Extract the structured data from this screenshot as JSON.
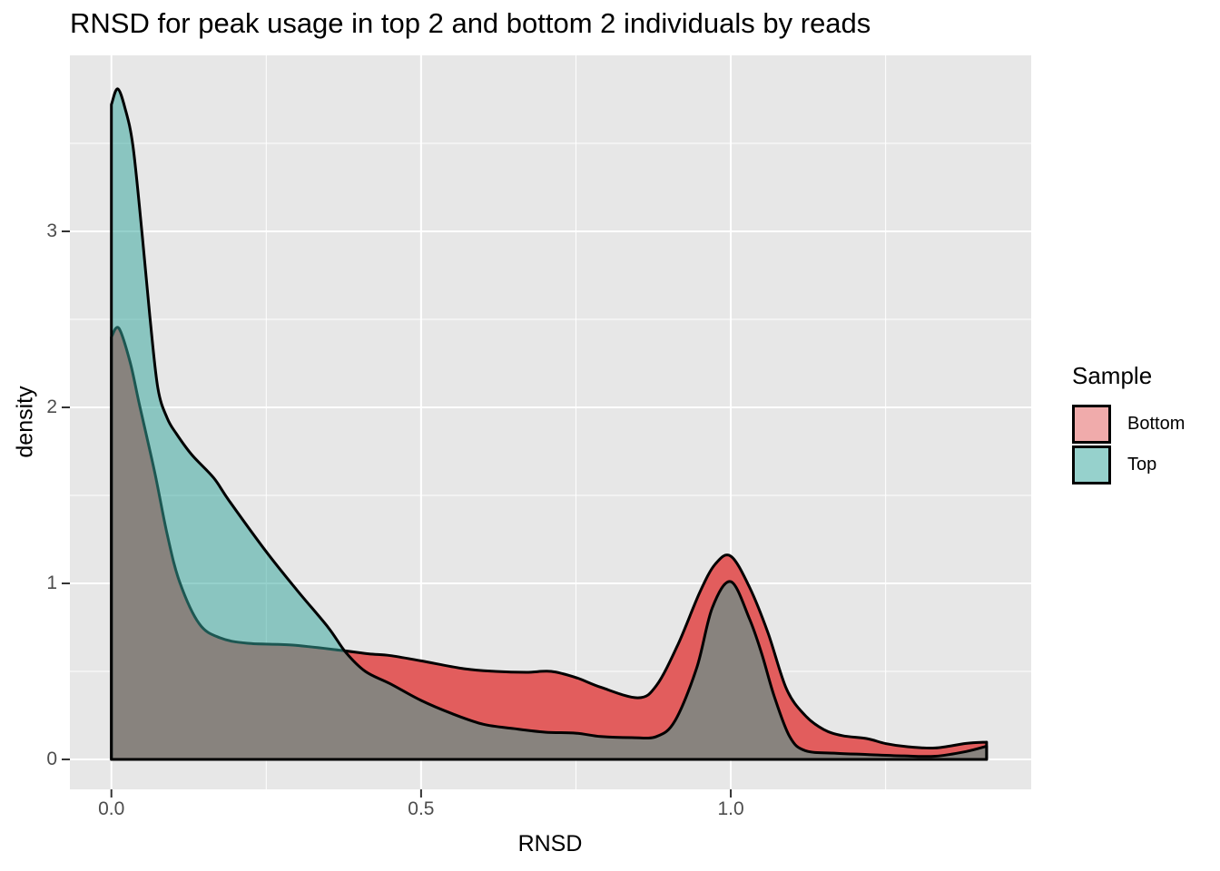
{
  "chart_data": {
    "type": "area",
    "subtype": "overlaid-density",
    "title": "RNSD for peak usage in top 2 and bottom 2 individuals by reads",
    "xlabel": "RNSD",
    "ylabel": "density",
    "xlim": [
      -0.067,
      1.485
    ],
    "ylim": [
      -0.17,
      4.0
    ],
    "x_ticks": {
      "values": [
        0.0,
        0.5,
        1.0
      ],
      "labels": [
        "0.0",
        "0.5",
        "1.0"
      ]
    },
    "y_ticks": {
      "values": [
        0,
        1,
        2,
        3
      ],
      "labels": [
        "0",
        "1",
        "2",
        "3"
      ]
    },
    "x_minor_gridlines": [
      0.25,
      0.75,
      1.25
    ],
    "y_minor_gridlines": [
      0.5,
      1.5,
      2.5,
      3.5
    ],
    "grid": true,
    "legend": {
      "title": "Sample",
      "position": "right",
      "entries": [
        {
          "label": "Bottom",
          "swatch": "#F0ABAB"
        },
        {
          "label": "Top",
          "swatch": "#96D1CC"
        }
      ]
    },
    "series": [
      {
        "name": "Bottom",
        "fill": "#E25D5D",
        "fill_opacity": 1,
        "fill_rendered": "#F0ABAB",
        "stroke": "#000000",
        "points": [
          [
            0,
            2.4
          ],
          [
            0.012,
            2.45
          ],
          [
            0.03,
            2.26
          ],
          [
            0.045,
            2.02
          ],
          [
            0.07,
            1.63
          ],
          [
            0.09,
            1.28
          ],
          [
            0.11,
            1.01
          ],
          [
            0.142,
            0.77
          ],
          [
            0.176,
            0.69
          ],
          [
            0.22,
            0.66
          ],
          [
            0.29,
            0.65
          ],
          [
            0.37,
            0.62
          ],
          [
            0.415,
            0.6
          ],
          [
            0.45,
            0.59
          ],
          [
            0.5,
            0.56
          ],
          [
            0.57,
            0.515
          ],
          [
            0.62,
            0.5
          ],
          [
            0.67,
            0.495
          ],
          [
            0.71,
            0.5
          ],
          [
            0.75,
            0.465
          ],
          [
            0.79,
            0.41
          ],
          [
            0.85,
            0.35
          ],
          [
            0.88,
            0.42
          ],
          [
            0.915,
            0.655
          ],
          [
            0.95,
            0.95
          ],
          [
            0.975,
            1.11
          ],
          [
            1.0,
            1.155
          ],
          [
            1.03,
            0.98
          ],
          [
            1.06,
            0.72
          ],
          [
            1.09,
            0.4
          ],
          [
            1.12,
            0.25
          ],
          [
            1.15,
            0.17
          ],
          [
            1.18,
            0.135
          ],
          [
            1.22,
            0.118
          ],
          [
            1.25,
            0.09
          ],
          [
            1.285,
            0.072
          ],
          [
            1.33,
            0.065
          ],
          [
            1.38,
            0.091
          ],
          [
            1.413,
            0.098
          ]
        ]
      },
      {
        "name": "Top",
        "fill": "#35A69D",
        "fill_opacity": 0.52,
        "fill_rendered": "#96D1CC",
        "stroke": "#000000",
        "points": [
          [
            0,
            3.72
          ],
          [
            0.01,
            3.81
          ],
          [
            0.022,
            3.7
          ],
          [
            0.035,
            3.48
          ],
          [
            0.05,
            2.97
          ],
          [
            0.062,
            2.52
          ],
          [
            0.075,
            2.11
          ],
          [
            0.09,
            1.94
          ],
          [
            0.105,
            1.85
          ],
          [
            0.13,
            1.73
          ],
          [
            0.165,
            1.6
          ],
          [
            0.19,
            1.47
          ],
          [
            0.25,
            1.18
          ],
          [
            0.3,
            0.96
          ],
          [
            0.35,
            0.75
          ],
          [
            0.378,
            0.61
          ],
          [
            0.41,
            0.5
          ],
          [
            0.45,
            0.43
          ],
          [
            0.5,
            0.335
          ],
          [
            0.55,
            0.26
          ],
          [
            0.6,
            0.2
          ],
          [
            0.65,
            0.175
          ],
          [
            0.7,
            0.155
          ],
          [
            0.75,
            0.149
          ],
          [
            0.79,
            0.13
          ],
          [
            0.84,
            0.124
          ],
          [
            0.88,
            0.13
          ],
          [
            0.91,
            0.22
          ],
          [
            0.945,
            0.52
          ],
          [
            0.97,
            0.86
          ],
          [
            1.0,
            1.01
          ],
          [
            1.03,
            0.8
          ],
          [
            1.05,
            0.6
          ],
          [
            1.07,
            0.36
          ],
          [
            1.095,
            0.13
          ],
          [
            1.12,
            0.05
          ],
          [
            1.17,
            0.035
          ],
          [
            1.22,
            0.028
          ],
          [
            1.28,
            0.02
          ],
          [
            1.33,
            0.018
          ],
          [
            1.38,
            0.045
          ],
          [
            1.413,
            0.075
          ]
        ]
      }
    ]
  },
  "colors": {
    "panel_bg": "#E7E7E7",
    "gridline": "#FFFFFF",
    "axis_tick": "#333333",
    "tick_label": "#4D4D4D",
    "text": "#000000",
    "outline": "#000000"
  }
}
